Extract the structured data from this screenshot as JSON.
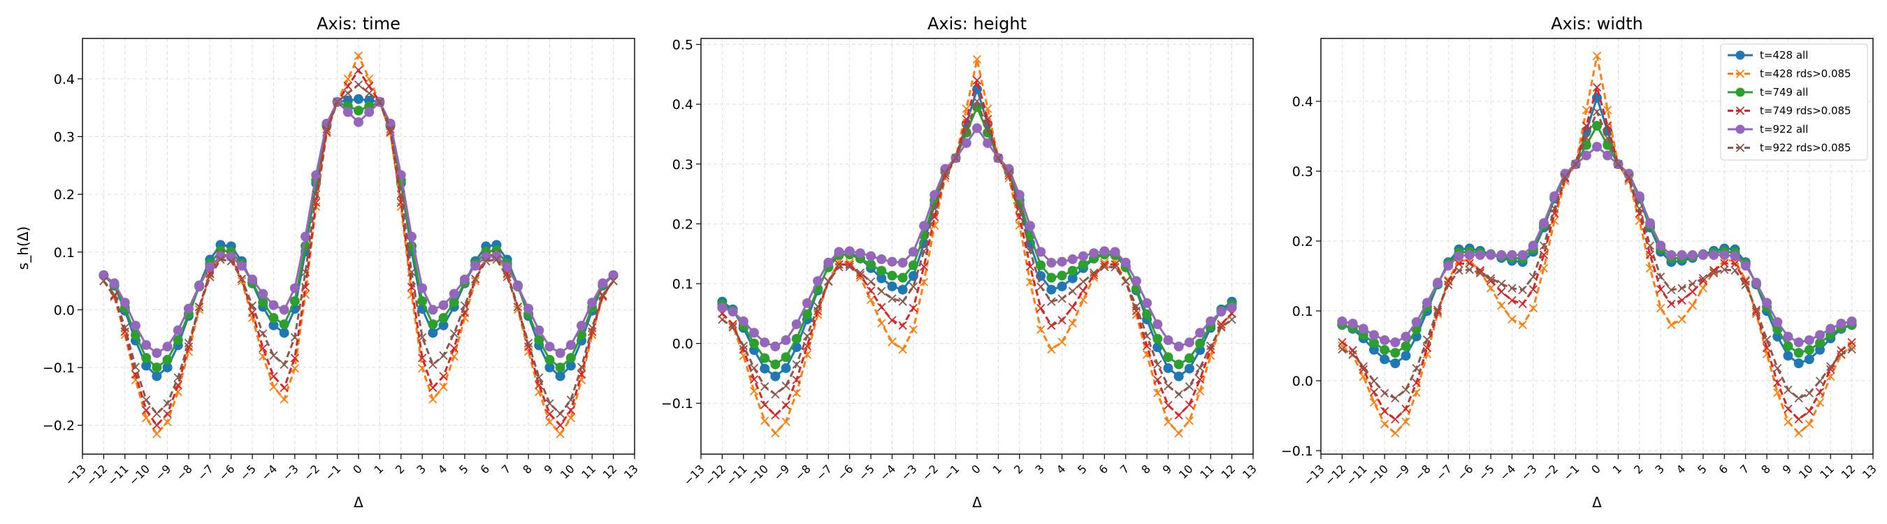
{
  "chart_data": [
    {
      "type": "line",
      "title": "Axis: time",
      "xlabel": "Δ",
      "ylabel": "s_h(Δ)",
      "xlim": [
        -13,
        13
      ],
      "ylim": [
        -0.25,
        0.47
      ],
      "yticks": [
        -0.2,
        -0.1,
        0.0,
        0.1,
        0.2,
        0.3,
        0.4
      ],
      "ytick_labels": [
        "−0.2",
        "−0.1",
        "0.0",
        "0.1",
        "0.2",
        "0.3",
        "0.4"
      ],
      "xticks": [
        -13,
        -12,
        -11,
        -10,
        -9,
        -8,
        -7,
        -6,
        -5,
        -4,
        -3,
        -2,
        -1,
        0,
        1,
        2,
        3,
        4,
        5,
        6,
        7,
        8,
        9,
        10,
        11,
        12,
        13
      ],
      "xtick_labels": [
        "−13",
        "−12",
        "−11",
        "−10",
        "−9",
        "−8",
        "−7",
        "−6",
        "−5",
        "−4",
        "−3",
        "−2",
        "−1",
        "0",
        "1",
        "2",
        "3",
        "4",
        "5",
        "6",
        "7",
        "8",
        "9",
        "10",
        "11",
        "12",
        "13"
      ],
      "grid": true,
      "legend": false,
      "center": 0.36,
      "series": [
        {
          "name": "t=428 all",
          "style": "solid-circle",
          "color": "#1f77b4",
          "mid": 0.06,
          "min1": -0.115,
          "mid2": 0.115,
          "min2": -0.04,
          "peak": 0.365
        },
        {
          "name": "t=428 rds>0.085",
          "style": "dash-x",
          "color": "#ff7f0e",
          "mid": 0.05,
          "min1": -0.215,
          "mid2": 0.1,
          "min2": -0.155,
          "peak": 0.44
        },
        {
          "name": "t=749 all",
          "style": "solid-circle",
          "color": "#2ca02c",
          "mid": 0.06,
          "min1": -0.1,
          "mid2": 0.105,
          "min2": -0.025,
          "peak": 0.345
        },
        {
          "name": "t=749 rds>0.085",
          "style": "dash-x",
          "color": "#d62728",
          "mid": 0.05,
          "min1": -0.2,
          "mid2": 0.1,
          "min2": -0.135,
          "peak": 0.415
        },
        {
          "name": "t=922 all",
          "style": "solid-circle",
          "color": "#9467bd",
          "mid": 0.06,
          "min1": -0.075,
          "mid2": 0.095,
          "min2": 0.0,
          "peak": 0.325
        },
        {
          "name": "t=922 rds>0.085",
          "style": "dash-x",
          "color": "#8c564b",
          "mid": 0.05,
          "min1": -0.18,
          "mid2": 0.09,
          "min2": -0.095,
          "peak": 0.39
        }
      ]
    },
    {
      "type": "line",
      "title": "Axis: height",
      "xlabel": "Δ",
      "ylabel": "",
      "xlim": [
        -13,
        13
      ],
      "ylim": [
        -0.185,
        0.51
      ],
      "yticks": [
        -0.1,
        0.0,
        0.1,
        0.2,
        0.3,
        0.4,
        0.5
      ],
      "ytick_labels": [
        "−0.1",
        "0.0",
        "0.1",
        "0.2",
        "0.3",
        "0.4",
        "0.5"
      ],
      "xticks": [
        -13,
        -12,
        -11,
        -10,
        -9,
        -8,
        -7,
        -6,
        -5,
        -4,
        -3,
        -2,
        -1,
        0,
        1,
        2,
        3,
        4,
        5,
        6,
        7,
        8,
        9,
        10,
        11,
        12,
        13
      ],
      "xtick_labels": [
        "−13",
        "−12",
        "−11",
        "−10",
        "−9",
        "−8",
        "−7",
        "−6",
        "−5",
        "−4",
        "−3",
        "−2",
        "−1",
        "0",
        "1",
        "2",
        "3",
        "4",
        "5",
        "6",
        "7",
        "8",
        "9",
        "10",
        "11",
        "12",
        "13"
      ],
      "grid": true,
      "legend": false,
      "center": 0.31,
      "series": [
        {
          "name": "t=428 all",
          "style": "solid-circle",
          "color": "#1f77b4",
          "mid": 0.07,
          "min1": -0.055,
          "mid2": 0.155,
          "min2": 0.09,
          "peak": 0.425
        },
        {
          "name": "t=428 rds>0.085",
          "style": "dash-x",
          "color": "#ff7f0e",
          "mid": 0.05,
          "min1": -0.15,
          "mid2": 0.14,
          "min2": -0.01,
          "peak": 0.475
        },
        {
          "name": "t=749 all",
          "style": "solid-circle",
          "color": "#2ca02c",
          "mid": 0.065,
          "min1": -0.035,
          "mid2": 0.15,
          "min2": 0.11,
          "peak": 0.395
        },
        {
          "name": "t=749 rds>0.085",
          "style": "dash-x",
          "color": "#d62728",
          "mid": 0.05,
          "min1": -0.12,
          "mid2": 0.135,
          "min2": 0.03,
          "peak": 0.44
        },
        {
          "name": "t=922 all",
          "style": "solid-circle",
          "color": "#9467bd",
          "mid": 0.06,
          "min1": -0.005,
          "mid2": 0.155,
          "min2": 0.135,
          "peak": 0.36
        },
        {
          "name": "t=922 rds>0.085",
          "style": "dash-x",
          "color": "#8c564b",
          "mid": 0.04,
          "min1": -0.085,
          "mid2": 0.13,
          "min2": 0.07,
          "peak": 0.405
        }
      ]
    },
    {
      "type": "line",
      "title": "Axis: width",
      "xlabel": "Δ",
      "ylabel": "",
      "xlim": [
        -13,
        13
      ],
      "ylim": [
        -0.105,
        0.49
      ],
      "yticks": [
        -0.1,
        0.0,
        0.1,
        0.2,
        0.3,
        0.4
      ],
      "ytick_labels": [
        "−0.1",
        "0.0",
        "0.1",
        "0.2",
        "0.3",
        "0.4"
      ],
      "xticks": [
        -13,
        -12,
        -11,
        -10,
        -9,
        -8,
        -7,
        -6,
        -5,
        -4,
        -3,
        -2,
        -1,
        0,
        1,
        2,
        3,
        4,
        5,
        6,
        7,
        8,
        9,
        10,
        11,
        12,
        13
      ],
      "xtick_labels": [
        "−13",
        "−12",
        "−11",
        "−10",
        "−9",
        "−8",
        "−7",
        "−6",
        "−5",
        "−4",
        "−3",
        "−2",
        "−1",
        "0",
        "1",
        "2",
        "3",
        "4",
        "5",
        "6",
        "7",
        "8",
        "9",
        "10",
        "11",
        "12",
        "13"
      ],
      "grid": true,
      "legend": true,
      "legend_loc": "top-right",
      "center": 0.31,
      "series": [
        {
          "name": "t=428 all",
          "style": "solid-circle",
          "color": "#1f77b4",
          "mid": 0.08,
          "min1": 0.025,
          "mid2": 0.19,
          "min2": 0.17,
          "peak": 0.405
        },
        {
          "name": "t=428 rds>0.085",
          "style": "dash-x",
          "color": "#ff7f0e",
          "mid": 0.05,
          "min1": -0.075,
          "mid2": 0.175,
          "min2": 0.08,
          "peak": 0.465
        },
        {
          "name": "t=749 all",
          "style": "solid-circle",
          "color": "#2ca02c",
          "mid": 0.08,
          "min1": 0.04,
          "mid2": 0.185,
          "min2": 0.175,
          "peak": 0.365
        },
        {
          "name": "t=749 rds>0.085",
          "style": "dash-x",
          "color": "#d62728",
          "mid": 0.055,
          "min1": -0.055,
          "mid2": 0.17,
          "min2": 0.11,
          "peak": 0.42
        },
        {
          "name": "t=922 all",
          "style": "solid-circle",
          "color": "#9467bd",
          "mid": 0.085,
          "min1": 0.055,
          "mid2": 0.18,
          "min2": 0.18,
          "peak": 0.335
        },
        {
          "name": "t=922 rds>0.085",
          "style": "dash-x",
          "color": "#8c564b",
          "mid": 0.045,
          "min1": -0.025,
          "mid2": 0.16,
          "min2": 0.13,
          "peak": 0.385
        }
      ]
    }
  ]
}
